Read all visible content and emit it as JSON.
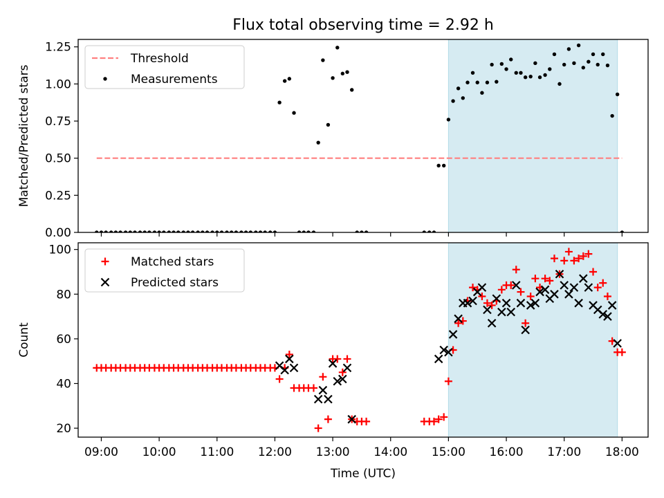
{
  "chart_data": [
    {
      "type": "scatter",
      "title": "Flux total observing time = 2.92 h",
      "xlabel": "",
      "ylabel": "Matched/Predicted stars",
      "xlim": [
        8.6,
        18.45
      ],
      "ylim": [
        0,
        1.3
      ],
      "yticks": [
        0,
        0.25,
        0.5,
        0.75,
        1.0,
        1.25
      ],
      "ytick_labels": [
        "0.00",
        "0.25",
        "0.50",
        "0.75",
        "1.00",
        "1.25"
      ],
      "xticks": [
        9,
        10,
        11,
        12,
        13,
        14,
        15,
        16,
        17,
        18
      ],
      "shaded_interval": {
        "x0": 15.0,
        "x1": 17.92,
        "color": "#add8e6"
      },
      "legend": {
        "position": "upper-left",
        "entries": [
          "Threshold",
          "Measurements"
        ]
      },
      "threshold": {
        "name": "Threshold",
        "y": 0.5,
        "x0": 8.92,
        "x1": 18.0,
        "color": "#ff7f7f",
        "style": "dashed"
      },
      "series": [
        {
          "name": "Measurements",
          "marker": "dot",
          "color": "#000000",
          "points": [
            [
              8.92,
              0
            ],
            [
              9.0,
              0
            ],
            [
              9.08,
              0
            ],
            [
              9.17,
              0
            ],
            [
              9.25,
              0
            ],
            [
              9.33,
              0
            ],
            [
              9.42,
              0
            ],
            [
              9.5,
              0
            ],
            [
              9.58,
              0
            ],
            [
              9.67,
              0
            ],
            [
              9.75,
              0
            ],
            [
              9.83,
              0
            ],
            [
              9.92,
              0
            ],
            [
              10.0,
              0
            ],
            [
              10.08,
              0
            ],
            [
              10.17,
              0
            ],
            [
              10.25,
              0
            ],
            [
              10.33,
              0
            ],
            [
              10.42,
              0
            ],
            [
              10.5,
              0
            ],
            [
              10.58,
              0
            ],
            [
              10.67,
              0
            ],
            [
              10.75,
              0
            ],
            [
              10.83,
              0
            ],
            [
              10.92,
              0
            ],
            [
              11.0,
              0
            ],
            [
              11.08,
              0
            ],
            [
              11.17,
              0
            ],
            [
              11.25,
              0
            ],
            [
              11.33,
              0
            ],
            [
              11.42,
              0
            ],
            [
              11.5,
              0
            ],
            [
              11.58,
              0
            ],
            [
              11.67,
              0
            ],
            [
              11.75,
              0
            ],
            [
              11.83,
              0
            ],
            [
              11.92,
              0
            ],
            [
              12.0,
              0
            ],
            [
              12.08,
              0.875
            ],
            [
              12.17,
              1.02
            ],
            [
              12.25,
              1.035
            ],
            [
              12.33,
              0.805
            ],
            [
              12.42,
              0
            ],
            [
              12.5,
              0
            ],
            [
              12.58,
              0
            ],
            [
              12.67,
              0
            ],
            [
              12.75,
              0.605
            ],
            [
              12.83,
              1.16
            ],
            [
              12.92,
              0.725
            ],
            [
              13.0,
              1.04
            ],
            [
              13.08,
              1.245
            ],
            [
              13.17,
              1.07
            ],
            [
              13.25,
              1.08
            ],
            [
              13.33,
              0.96
            ],
            [
              13.42,
              0
            ],
            [
              13.5,
              0
            ],
            [
              13.58,
              0
            ],
            [
              14.58,
              0
            ],
            [
              14.67,
              0
            ],
            [
              14.75,
              0
            ],
            [
              14.83,
              0.45
            ],
            [
              14.92,
              0.45
            ],
            [
              15.0,
              0.76
            ],
            [
              15.08,
              0.885
            ],
            [
              15.17,
              0.97
            ],
            [
              15.25,
              0.905
            ],
            [
              15.33,
              1.01
            ],
            [
              15.42,
              1.075
            ],
            [
              15.5,
              1.01
            ],
            [
              15.58,
              0.94
            ],
            [
              15.67,
              1.01
            ],
            [
              15.75,
              1.13
            ],
            [
              15.83,
              1.015
            ],
            [
              15.92,
              1.135
            ],
            [
              16.0,
              1.1
            ],
            [
              16.08,
              1.165
            ],
            [
              16.17,
              1.075
            ],
            [
              16.25,
              1.075
            ],
            [
              16.33,
              1.045
            ],
            [
              16.42,
              1.05
            ],
            [
              16.5,
              1.14
            ],
            [
              16.58,
              1.045
            ],
            [
              16.67,
              1.06
            ],
            [
              16.75,
              1.1
            ],
            [
              16.83,
              1.2
            ],
            [
              16.92,
              1.0
            ],
            [
              17.0,
              1.13
            ],
            [
              17.08,
              1.235
            ],
            [
              17.17,
              1.14
            ],
            [
              17.25,
              1.26
            ],
            [
              17.33,
              1.11
            ],
            [
              17.42,
              1.15
            ],
            [
              17.5,
              1.2
            ],
            [
              17.58,
              1.13
            ],
            [
              17.67,
              1.2
            ],
            [
              17.75,
              1.125
            ],
            [
              17.83,
              0.785
            ],
            [
              17.92,
              0.93
            ],
            [
              18.0,
              0
            ]
          ]
        }
      ]
    },
    {
      "type": "scatter",
      "title": "",
      "xlabel": "Time (UTC)",
      "ylabel": "Count",
      "xlim": [
        8.6,
        18.45
      ],
      "ylim": [
        16,
        103
      ],
      "yticks": [
        20,
        40,
        60,
        80,
        100
      ],
      "ytick_labels": [
        "20",
        "40",
        "60",
        "80",
        "100"
      ],
      "xticks": [
        9,
        10,
        11,
        12,
        13,
        14,
        15,
        16,
        17,
        18
      ],
      "xtick_labels": [
        "09:00",
        "10:00",
        "11:00",
        "12:00",
        "13:00",
        "14:00",
        "15:00",
        "16:00",
        "17:00",
        "18:00"
      ],
      "shaded_interval": {
        "x0": 15.0,
        "x1": 17.92,
        "color": "#add8e6"
      },
      "legend": {
        "position": "upper-left",
        "entries": [
          "Matched stars",
          "Predicted stars"
        ]
      },
      "series": [
        {
          "name": "Matched stars",
          "marker": "plus",
          "color": "#ff0000",
          "points": [
            [
              8.92,
              47
            ],
            [
              9.0,
              47
            ],
            [
              9.08,
              47
            ],
            [
              9.17,
              47
            ],
            [
              9.25,
              47
            ],
            [
              9.33,
              47
            ],
            [
              9.42,
              47
            ],
            [
              9.5,
              47
            ],
            [
              9.58,
              47
            ],
            [
              9.67,
              47
            ],
            [
              9.75,
              47
            ],
            [
              9.83,
              47
            ],
            [
              9.92,
              47
            ],
            [
              10.0,
              47
            ],
            [
              10.08,
              47
            ],
            [
              10.17,
              47
            ],
            [
              10.25,
              47
            ],
            [
              10.33,
              47
            ],
            [
              10.42,
              47
            ],
            [
              10.5,
              47
            ],
            [
              10.58,
              47
            ],
            [
              10.67,
              47
            ],
            [
              10.75,
              47
            ],
            [
              10.83,
              47
            ],
            [
              10.92,
              47
            ],
            [
              11.0,
              47
            ],
            [
              11.08,
              47
            ],
            [
              11.17,
              47
            ],
            [
              11.25,
              47
            ],
            [
              11.33,
              47
            ],
            [
              11.42,
              47
            ],
            [
              11.5,
              47
            ],
            [
              11.58,
              47
            ],
            [
              11.67,
              47
            ],
            [
              11.75,
              47
            ],
            [
              11.83,
              47
            ],
            [
              11.92,
              47
            ],
            [
              12.0,
              47
            ],
            [
              12.08,
              42
            ],
            [
              12.17,
              47
            ],
            [
              12.25,
              53
            ],
            [
              12.33,
              38
            ],
            [
              12.42,
              38
            ],
            [
              12.5,
              38
            ],
            [
              12.58,
              38
            ],
            [
              12.67,
              38
            ],
            [
              12.75,
              20
            ],
            [
              12.83,
              43
            ],
            [
              12.92,
              24
            ],
            [
              13.0,
              51
            ],
            [
              13.08,
              51
            ],
            [
              13.17,
              45
            ],
            [
              13.25,
              51
            ],
            [
              13.33,
              24
            ],
            [
              13.42,
              23
            ],
            [
              13.5,
              23
            ],
            [
              13.58,
              23
            ],
            [
              14.58,
              23
            ],
            [
              14.67,
              23
            ],
            [
              14.75,
              23
            ],
            [
              14.83,
              24
            ],
            [
              14.92,
              25
            ],
            [
              15.0,
              41
            ],
            [
              15.08,
              55
            ],
            [
              15.17,
              67
            ],
            [
              15.25,
              68
            ],
            [
              15.33,
              77
            ],
            [
              15.42,
              83
            ],
            [
              15.5,
              82
            ],
            [
              15.58,
              79
            ],
            [
              15.67,
              76
            ],
            [
              15.75,
              75
            ],
            [
              15.83,
              77
            ],
            [
              15.92,
              82
            ],
            [
              16.0,
              84
            ],
            [
              16.08,
              84
            ],
            [
              16.17,
              91
            ],
            [
              16.25,
              81
            ],
            [
              16.33,
              67
            ],
            [
              16.42,
              79
            ],
            [
              16.5,
              87
            ],
            [
              16.58,
              83
            ],
            [
              16.67,
              87
            ],
            [
              16.75,
              86
            ],
            [
              16.83,
              96
            ],
            [
              16.92,
              89
            ],
            [
              17.0,
              95
            ],
            [
              17.08,
              99
            ],
            [
              17.17,
              95
            ],
            [
              17.25,
              96
            ],
            [
              17.33,
              97
            ],
            [
              17.42,
              98
            ],
            [
              17.5,
              90
            ],
            [
              17.58,
              83
            ],
            [
              17.67,
              85
            ],
            [
              17.75,
              79
            ],
            [
              17.83,
              59
            ],
            [
              17.92,
              54
            ],
            [
              18.0,
              54
            ]
          ]
        },
        {
          "name": "Predicted stars",
          "marker": "x",
          "color": "#000000",
          "points": [
            [
              12.08,
              48
            ],
            [
              12.17,
              46
            ],
            [
              12.25,
              51
            ],
            [
              12.33,
              47
            ],
            [
              12.75,
              33
            ],
            [
              12.83,
              37
            ],
            [
              12.92,
              33
            ],
            [
              13.0,
              49
            ],
            [
              13.08,
              41
            ],
            [
              13.17,
              42
            ],
            [
              13.25,
              47
            ],
            [
              13.33,
              24
            ],
            [
              14.83,
              51
            ],
            [
              14.92,
              55
            ],
            [
              15.0,
              54
            ],
            [
              15.08,
              62
            ],
            [
              15.17,
              69
            ],
            [
              15.25,
              76
            ],
            [
              15.33,
              76
            ],
            [
              15.42,
              77
            ],
            [
              15.5,
              81
            ],
            [
              15.58,
              83
            ],
            [
              15.67,
              73
            ],
            [
              15.75,
              67
            ],
            [
              15.83,
              78
            ],
            [
              15.92,
              72
            ],
            [
              16.0,
              76
            ],
            [
              16.08,
              72
            ],
            [
              16.17,
              84
            ],
            [
              16.25,
              76
            ],
            [
              16.33,
              64
            ],
            [
              16.42,
              75
            ],
            [
              16.5,
              76
            ],
            [
              16.58,
              81
            ],
            [
              16.67,
              82
            ],
            [
              16.75,
              78
            ],
            [
              16.83,
              80
            ],
            [
              16.92,
              89
            ],
            [
              17.0,
              84
            ],
            [
              17.08,
              80
            ],
            [
              17.17,
              83
            ],
            [
              17.25,
              76
            ],
            [
              17.33,
              87
            ],
            [
              17.42,
              83
            ],
            [
              17.5,
              75
            ],
            [
              17.58,
              73
            ],
            [
              17.67,
              71
            ],
            [
              17.75,
              70
            ],
            [
              17.83,
              75
            ],
            [
              17.92,
              58
            ]
          ]
        }
      ]
    }
  ]
}
